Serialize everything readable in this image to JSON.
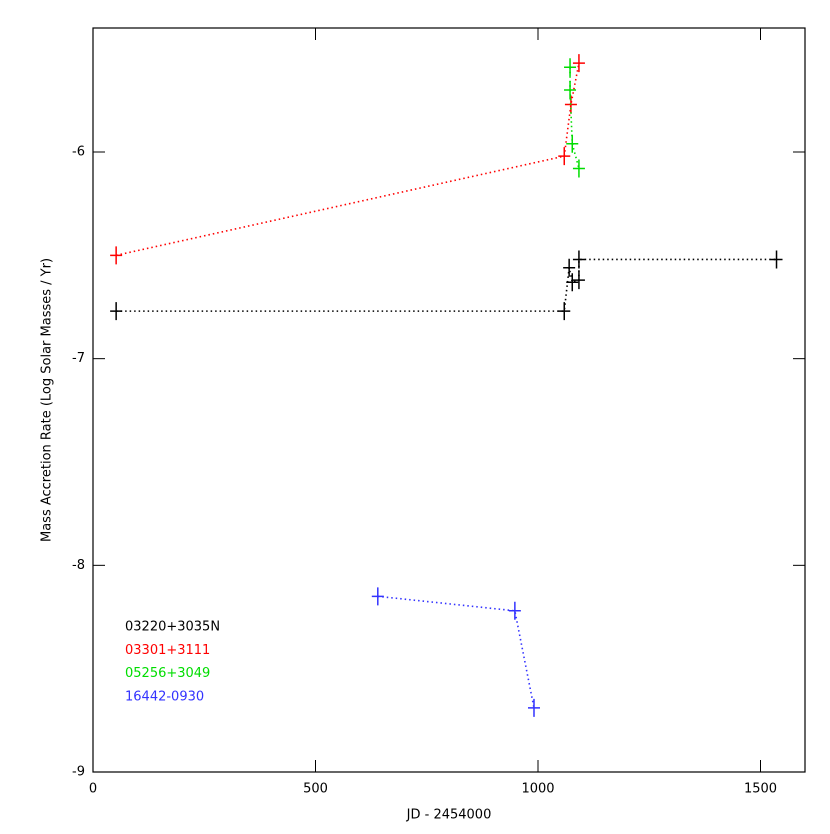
{
  "chart_data": {
    "type": "line",
    "xlabel": "JD - 2454000",
    "ylabel": "Mass Accretion Rate (Log Solar Masses / Yr)",
    "xlim": [
      0,
      1600
    ],
    "xticks": [
      0,
      500,
      1000,
      1500
    ],
    "ylim": [
      -9,
      -5.4
    ],
    "yticks": [
      -9,
      -8,
      -7,
      -6
    ],
    "series": [
      {
        "name": "03220+3035N",
        "color": "#000000",
        "x": [
          52,
          1059,
          1070,
          1077,
          1092,
          1092,
          1536
        ],
        "values": [
          -6.77,
          -6.77,
          -6.56,
          -6.63,
          -6.62,
          -6.52,
          -6.52
        ]
      },
      {
        "name": "03301+3111",
        "color": "#ff0000",
        "x": [
          52,
          1059,
          1074,
          1092
        ],
        "values": [
          -6.5,
          -6.02,
          -5.77,
          -5.57
        ]
      },
      {
        "name": "05256+3049",
        "color": "#00dd00",
        "x": [
          1072,
          1072,
          1077,
          1092
        ],
        "values": [
          -5.59,
          -5.7,
          -5.96,
          -6.08
        ]
      },
      {
        "name": "16442-0930",
        "color": "#3333ff",
        "x": [
          640,
          948,
          991
        ],
        "values": [
          -8.15,
          -8.22,
          -8.69
        ]
      }
    ]
  }
}
